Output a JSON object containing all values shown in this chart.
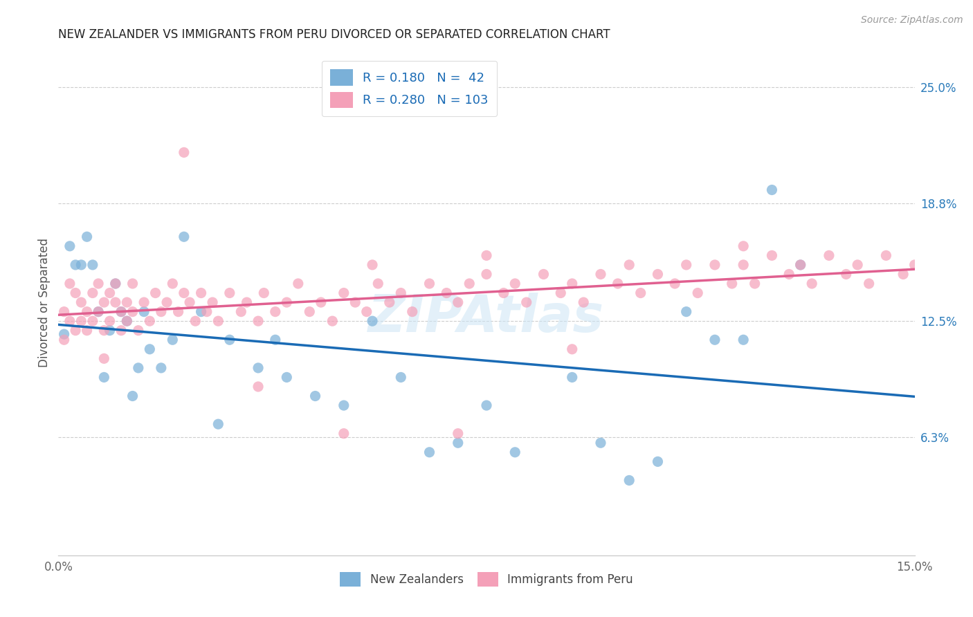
{
  "title": "NEW ZEALANDER VS IMMIGRANTS FROM PERU DIVORCED OR SEPARATED CORRELATION CHART",
  "source_text": "Source: ZipAtlas.com",
  "watermark": "ZIPAtlas",
  "ylabel": "Divorced or Separated",
  "x_min": 0.0,
  "x_max": 0.15,
  "y_min": 0.0,
  "y_max": 0.27,
  "x_ticks": [
    0.0,
    0.05,
    0.1,
    0.15
  ],
  "x_tick_labels": [
    "0.0%",
    "",
    "",
    "15.0%"
  ],
  "y_ticks_right": [
    0.063,
    0.125,
    0.188,
    0.25
  ],
  "y_tick_labels_right": [
    "6.3%",
    "12.5%",
    "18.8%",
    "25.0%"
  ],
  "series1_label": "New Zealanders",
  "series2_label": "Immigrants from Peru",
  "series1_color": "#7ab0d8",
  "series2_color": "#f4a0b8",
  "trendline1_color": "#1a6bb5",
  "trendline2_color": "#e06090",
  "R1": 0.18,
  "N1": 42,
  "R2": 0.28,
  "N2": 103,
  "series1_x": [
    0.001,
    0.002,
    0.003,
    0.004,
    0.005,
    0.006,
    0.007,
    0.008,
    0.009,
    0.01,
    0.011,
    0.012,
    0.013,
    0.014,
    0.015,
    0.016,
    0.018,
    0.02,
    0.022,
    0.025,
    0.028,
    0.03,
    0.035,
    0.038,
    0.04,
    0.045,
    0.05,
    0.055,
    0.06,
    0.065,
    0.07,
    0.075,
    0.08,
    0.09,
    0.095,
    0.1,
    0.105,
    0.11,
    0.115,
    0.12,
    0.125,
    0.13
  ],
  "series1_y": [
    0.118,
    0.165,
    0.155,
    0.155,
    0.17,
    0.155,
    0.13,
    0.095,
    0.12,
    0.145,
    0.13,
    0.125,
    0.085,
    0.1,
    0.13,
    0.11,
    0.1,
    0.115,
    0.17,
    0.13,
    0.07,
    0.115,
    0.1,
    0.115,
    0.095,
    0.085,
    0.08,
    0.125,
    0.095,
    0.055,
    0.06,
    0.08,
    0.055,
    0.095,
    0.06,
    0.04,
    0.05,
    0.13,
    0.115,
    0.115,
    0.195,
    0.155
  ],
  "series2_x": [
    0.001,
    0.001,
    0.002,
    0.002,
    0.003,
    0.003,
    0.004,
    0.004,
    0.005,
    0.005,
    0.006,
    0.006,
    0.007,
    0.007,
    0.008,
    0.008,
    0.009,
    0.009,
    0.01,
    0.01,
    0.011,
    0.011,
    0.012,
    0.012,
    0.013,
    0.013,
    0.014,
    0.015,
    0.016,
    0.017,
    0.018,
    0.019,
    0.02,
    0.021,
    0.022,
    0.023,
    0.024,
    0.025,
    0.026,
    0.027,
    0.028,
    0.03,
    0.032,
    0.033,
    0.035,
    0.036,
    0.038,
    0.04,
    0.042,
    0.044,
    0.046,
    0.048,
    0.05,
    0.052,
    0.054,
    0.056,
    0.058,
    0.06,
    0.062,
    0.065,
    0.068,
    0.07,
    0.072,
    0.075,
    0.078,
    0.08,
    0.082,
    0.085,
    0.088,
    0.09,
    0.092,
    0.095,
    0.098,
    0.1,
    0.102,
    0.105,
    0.108,
    0.11,
    0.112,
    0.115,
    0.118,
    0.12,
    0.122,
    0.125,
    0.128,
    0.13,
    0.132,
    0.135,
    0.138,
    0.14,
    0.142,
    0.145,
    0.148,
    0.15,
    0.008,
    0.022,
    0.035,
    0.055,
    0.075,
    0.09,
    0.05,
    0.07,
    0.12
  ],
  "series2_y": [
    0.115,
    0.13,
    0.125,
    0.145,
    0.12,
    0.14,
    0.135,
    0.125,
    0.13,
    0.12,
    0.14,
    0.125,
    0.145,
    0.13,
    0.135,
    0.12,
    0.14,
    0.125,
    0.135,
    0.145,
    0.13,
    0.12,
    0.135,
    0.125,
    0.145,
    0.13,
    0.12,
    0.135,
    0.125,
    0.14,
    0.13,
    0.135,
    0.145,
    0.13,
    0.14,
    0.135,
    0.125,
    0.14,
    0.13,
    0.135,
    0.125,
    0.14,
    0.13,
    0.135,
    0.125,
    0.14,
    0.13,
    0.135,
    0.145,
    0.13,
    0.135,
    0.125,
    0.14,
    0.135,
    0.13,
    0.145,
    0.135,
    0.14,
    0.13,
    0.145,
    0.14,
    0.135,
    0.145,
    0.15,
    0.14,
    0.145,
    0.135,
    0.15,
    0.14,
    0.145,
    0.135,
    0.15,
    0.145,
    0.155,
    0.14,
    0.15,
    0.145,
    0.155,
    0.14,
    0.155,
    0.145,
    0.155,
    0.145,
    0.16,
    0.15,
    0.155,
    0.145,
    0.16,
    0.15,
    0.155,
    0.145,
    0.16,
    0.15,
    0.155,
    0.105,
    0.215,
    0.09,
    0.155,
    0.16,
    0.11,
    0.065,
    0.065,
    0.165
  ]
}
